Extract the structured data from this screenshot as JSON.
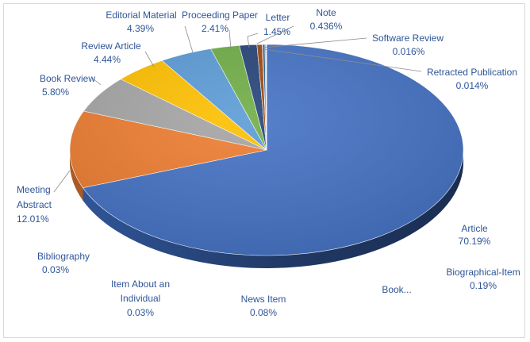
{
  "chart_data": {
    "type": "pie",
    "three_d": true,
    "legend": "none",
    "slices": [
      {
        "name": "Article",
        "value": 70.19,
        "label": "70.19%",
        "color": "#4472c4"
      },
      {
        "name": "Meeting Abstract",
        "value": 12.01,
        "label": "12.01%",
        "color": "#ed7d31"
      },
      {
        "name": "Book Review",
        "value": 5.8,
        "label": "5.80%",
        "color": "#a5a5a5"
      },
      {
        "name": "Review Article",
        "value": 4.44,
        "label": "4.44%",
        "color": "#ffc000"
      },
      {
        "name": "Editorial Material",
        "value": 4.39,
        "label": "4.39%",
        "color": "#5b9bd5"
      },
      {
        "name": "Proceeding Paper",
        "value": 2.41,
        "label": "2.41%",
        "color": "#70ad47"
      },
      {
        "name": "Letter",
        "value": 1.45,
        "label": "1.45%",
        "color": "#264478"
      },
      {
        "name": "Note",
        "value": 0.436,
        "label": "0.436%",
        "color": "#9e480e"
      },
      {
        "name": "Software Review",
        "value": 0.016,
        "label": "0.016%",
        "color": "#636363"
      },
      {
        "name": "Retracted Publication",
        "value": 0.014,
        "label": "0.014%",
        "color": "#997300"
      },
      {
        "name": "Biographical-Item",
        "value": 0.19,
        "label": "0.19%",
        "color": "#255e91"
      },
      {
        "name": "Book...",
        "value": 0.0,
        "label": "",
        "color": "#43682b"
      },
      {
        "name": "News Item",
        "value": 0.08,
        "label": "0.08%",
        "color": "#698ed0"
      },
      {
        "name": "Item About an Individual",
        "value": 0.03,
        "label": "0.03%",
        "color": "#f1975a"
      },
      {
        "name": "Bibliography",
        "value": 0.03,
        "label": "0.03%",
        "color": "#b7b7b7"
      }
    ]
  }
}
